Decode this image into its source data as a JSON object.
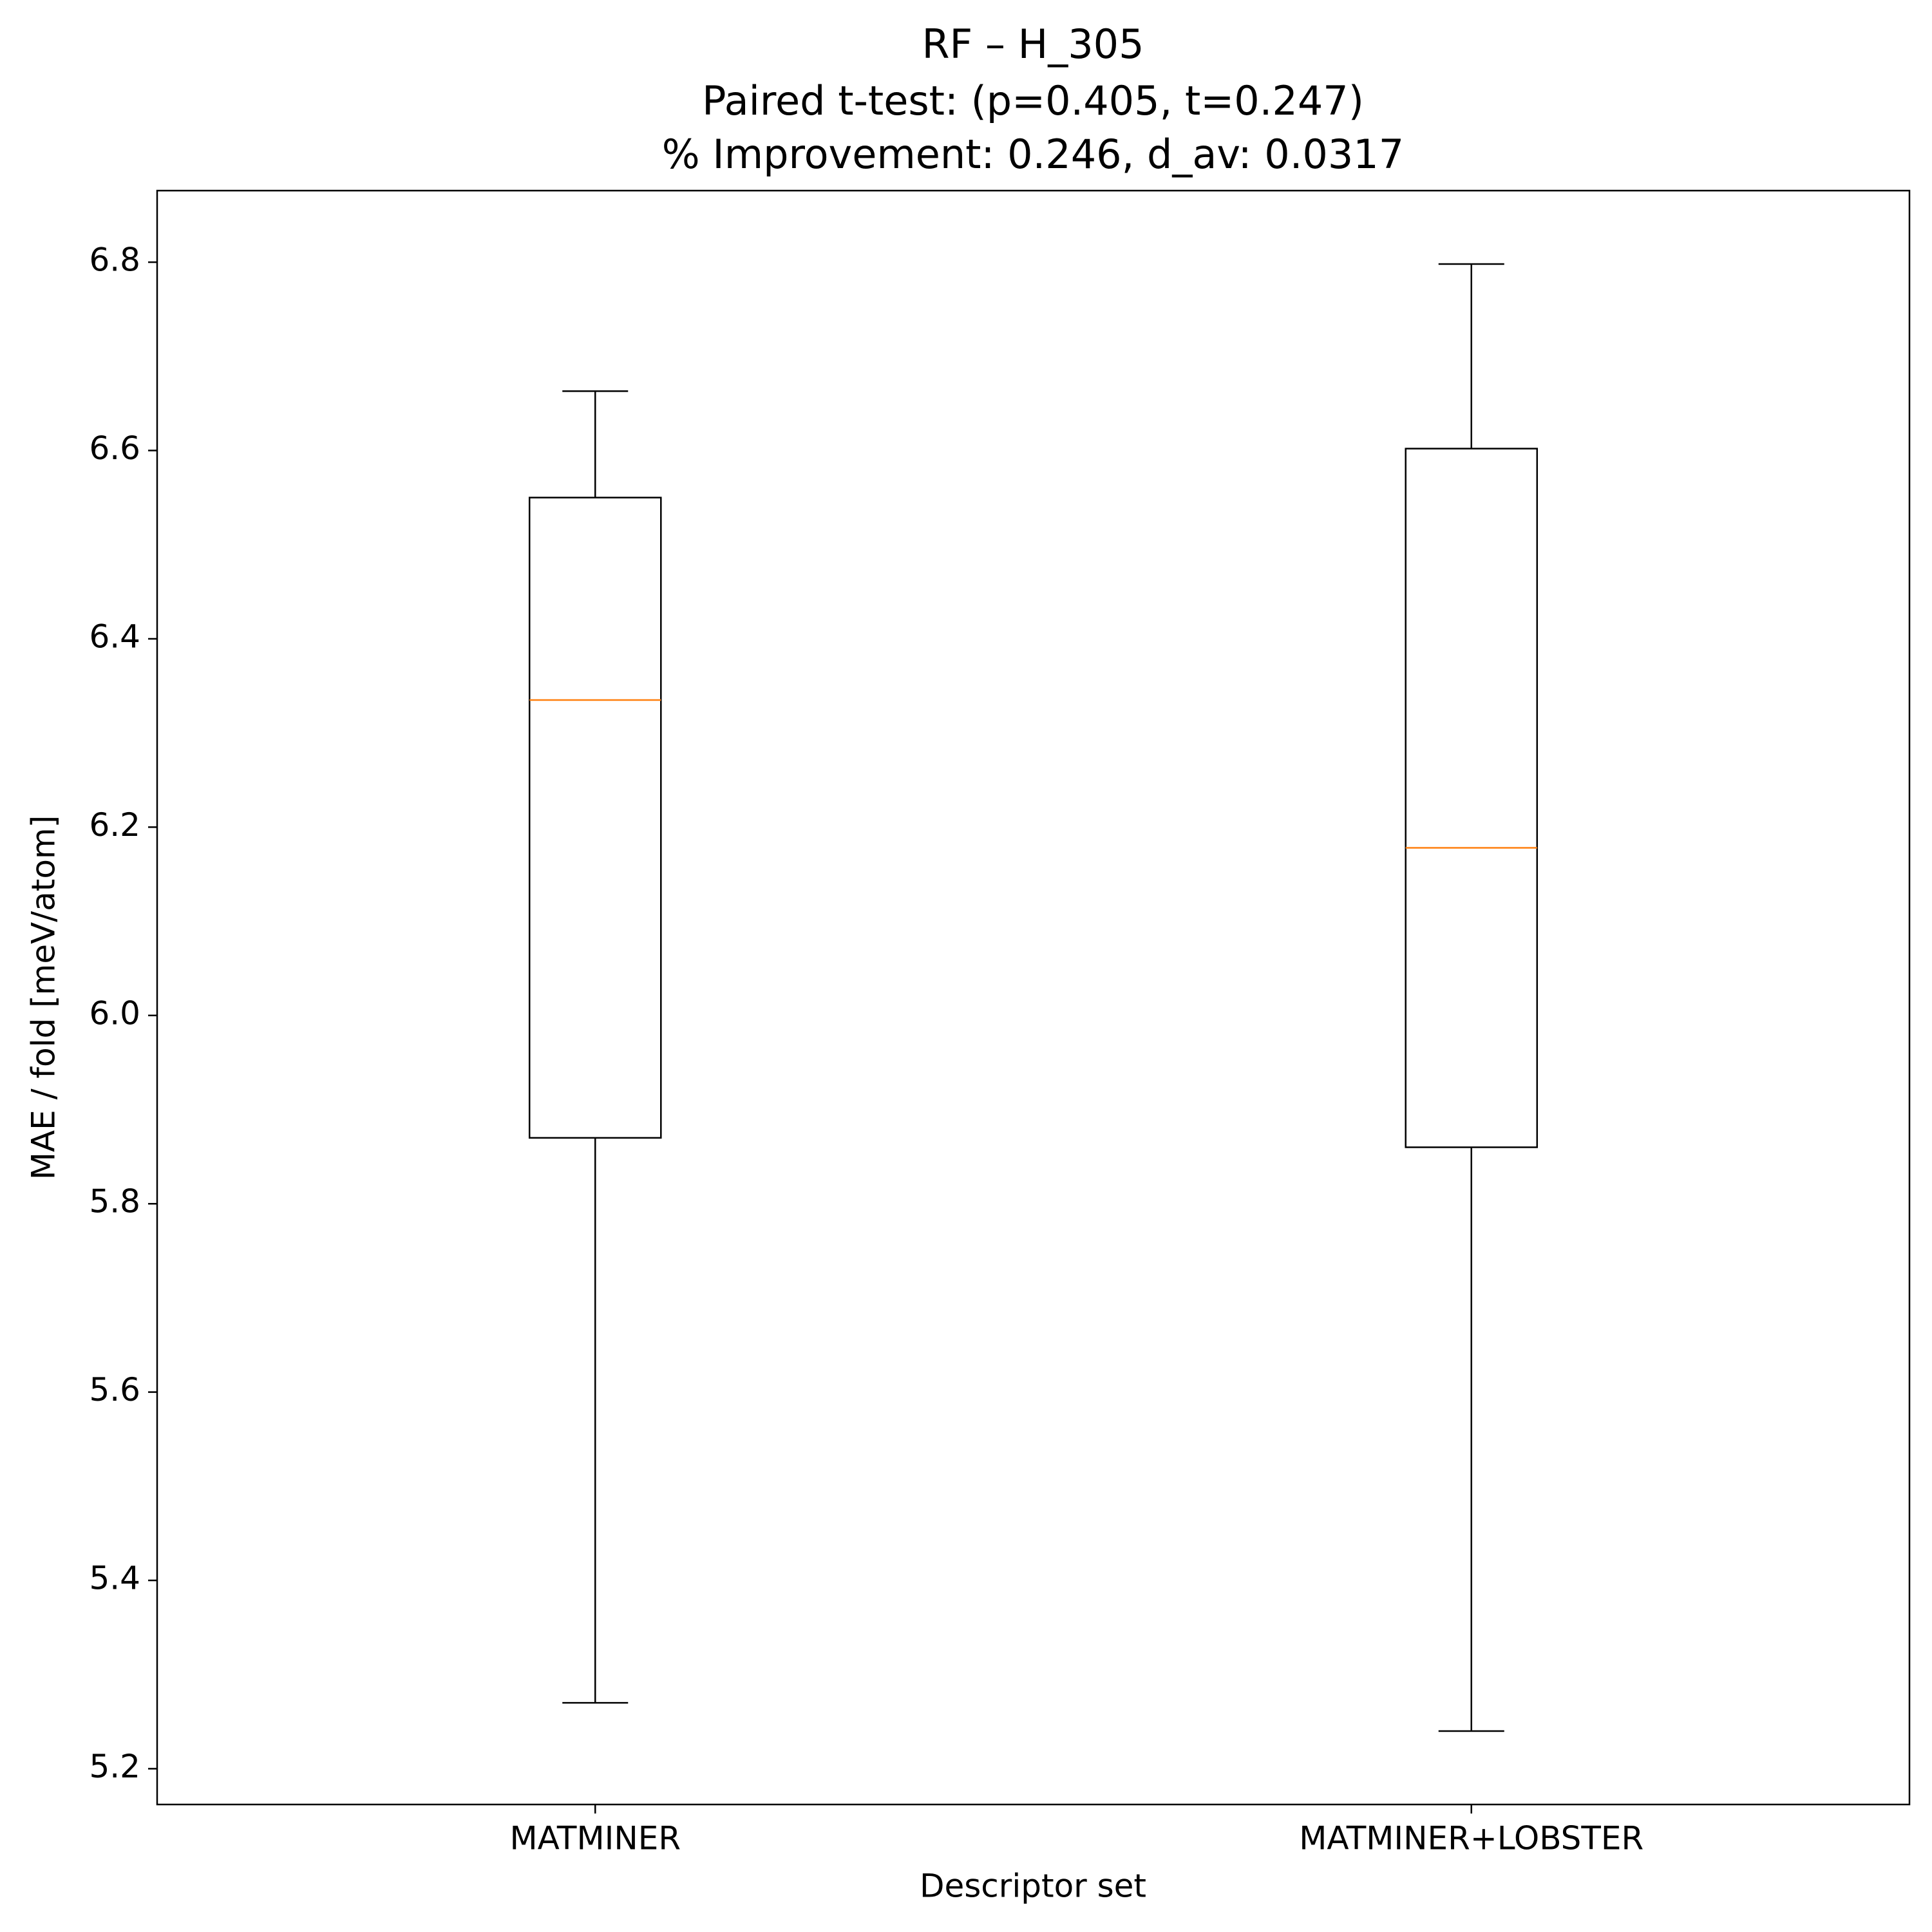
{
  "chart_data": {
    "type": "box",
    "title": "RF – H_305",
    "subtitle": [
      "Paired t-test: (p=0.405, t=0.247)",
      "% Improvement: 0.246, d_av: 0.0317"
    ],
    "x_label": "Descriptor set",
    "y_label": "MAE / fold [meV/atom]",
    "categories": [
      "MATMINER",
      "MATMINER+LOBSTER"
    ],
    "boxes": [
      {
        "whislo": 5.27,
        "q1": 5.87,
        "med": 6.335,
        "q3": 6.55,
        "whishi": 6.663
      },
      {
        "whislo": 5.24,
        "q1": 5.86,
        "med": 6.178,
        "q3": 6.602,
        "whishi": 6.798
      }
    ],
    "box_color": "#000000",
    "median_color": "#ff7f0e",
    "ylim": [
      5.162,
      6.876
    ],
    "yticks": [
      5.2,
      5.4,
      5.6,
      5.8,
      {
        "value": 6,
        "label": "6.0"
      },
      6.2,
      6.4,
      6.6,
      6.8
    ],
    "grid": false
  }
}
